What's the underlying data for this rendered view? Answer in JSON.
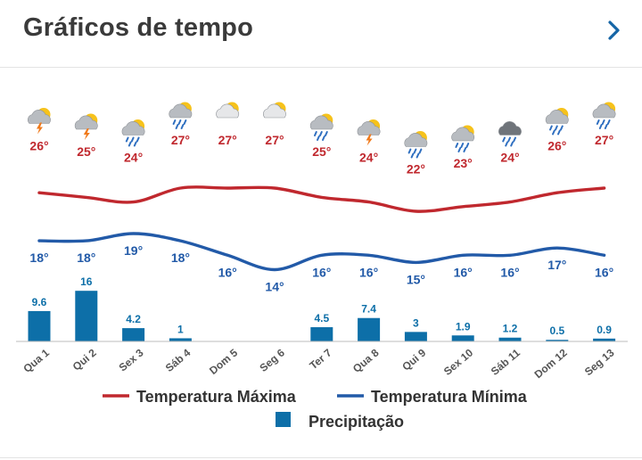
{
  "header": {
    "title": "Gráficos de tempo",
    "next_icon": "chevron-right-icon",
    "accent_color": "#1565a6"
  },
  "colors": {
    "max_line": "#c0282e",
    "min_line": "#225aa8",
    "bar": "#0d6fa8",
    "axis": "#555555"
  },
  "chart_data": {
    "type": "line+bar",
    "categories": [
      "Qua 1",
      "Qui 2",
      "Sex 3",
      "Sáb 4",
      "Dom 5",
      "Seg 6",
      "Ter 7",
      "Qua 8",
      "Qui 9",
      "Sex 10",
      "Sáb 11",
      "Dom 12",
      "Seg 13"
    ],
    "weather_icons": [
      "storm-icon",
      "storm-icon",
      "rain-icon",
      "rain-icon",
      "sun-cloud-icon",
      "sun-cloud-icon",
      "rain-icon",
      "storm-icon",
      "rain-icon",
      "rain-icon",
      "dark-rain-icon",
      "rain-icon",
      "sun-rain-icon"
    ],
    "series": [
      {
        "name": "Temperatura Máxima",
        "values": [
          26,
          25,
          24,
          27,
          27,
          27,
          25,
          24,
          22,
          23,
          24,
          26,
          27
        ],
        "unit": "°"
      },
      {
        "name": "Temperatura Mínima",
        "values": [
          18,
          18,
          19,
          18,
          16,
          14,
          16,
          16,
          15,
          16,
          16,
          17,
          16
        ],
        "unit": "°"
      },
      {
        "name": "Precipitação",
        "values": [
          9.6,
          16,
          4.2,
          1,
          0,
          0,
          4.5,
          7.4,
          3,
          1.9,
          1.2,
          0.5,
          0.9
        ]
      }
    ],
    "precip_labels": [
      "9.6",
      "16",
      "4.2",
      "1",
      "",
      "",
      "4.5",
      "7.4",
      "3",
      "1.9",
      "1.2",
      "0.5",
      "0.9"
    ],
    "legend": [
      {
        "label": "Temperatura Máxima",
        "kind": "line",
        "color": "#c0282e"
      },
      {
        "label": "Temperatura Mínima",
        "kind": "line",
        "color": "#225aa8"
      },
      {
        "label": "Precipitação",
        "kind": "square",
        "color": "#0d6fa8"
      }
    ],
    "legend_position": "bottom",
    "grid": false
  }
}
